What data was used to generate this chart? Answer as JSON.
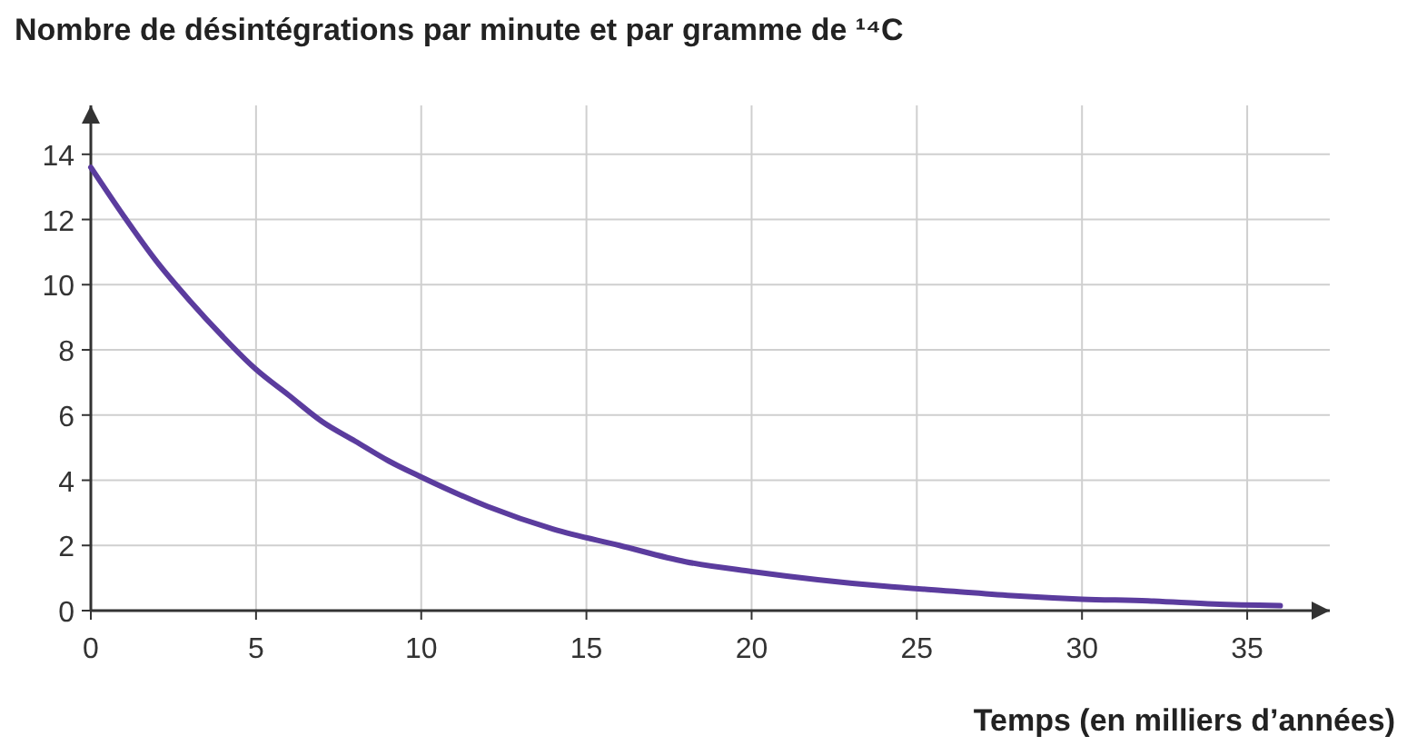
{
  "chart_data": {
    "type": "line",
    "title": "Nombre de désintégrations par minute et par gramme de ¹⁴C",
    "xlabel": "Temps (en  milliers d’années)",
    "x": [
      0,
      1,
      2,
      3,
      4,
      5,
      6,
      7,
      8,
      9,
      10,
      12,
      14,
      16,
      18,
      20,
      22,
      24,
      26,
      28,
      30,
      32,
      34,
      36
    ],
    "series": [
      {
        "color": "#5b3c9e",
        "values": [
          13.6,
          12.1,
          10.7,
          9.5,
          8.4,
          7.4,
          6.6,
          5.8,
          5.2,
          4.6,
          4.1,
          3.2,
          2.5,
          2.0,
          1.5,
          1.2,
          0.95,
          0.75,
          0.6,
          0.45,
          0.35,
          0.3,
          0.2,
          0.15
        ]
      }
    ],
    "xlim": [
      0,
      37.5
    ],
    "ylim": [
      0,
      15.5
    ],
    "xticks": [
      0,
      5,
      10,
      15,
      20,
      25,
      30,
      35
    ],
    "yticks": [
      0,
      2,
      4,
      6,
      8,
      10,
      12,
      14
    ],
    "grid": true,
    "marker": "none",
    "line_style": "solid"
  }
}
